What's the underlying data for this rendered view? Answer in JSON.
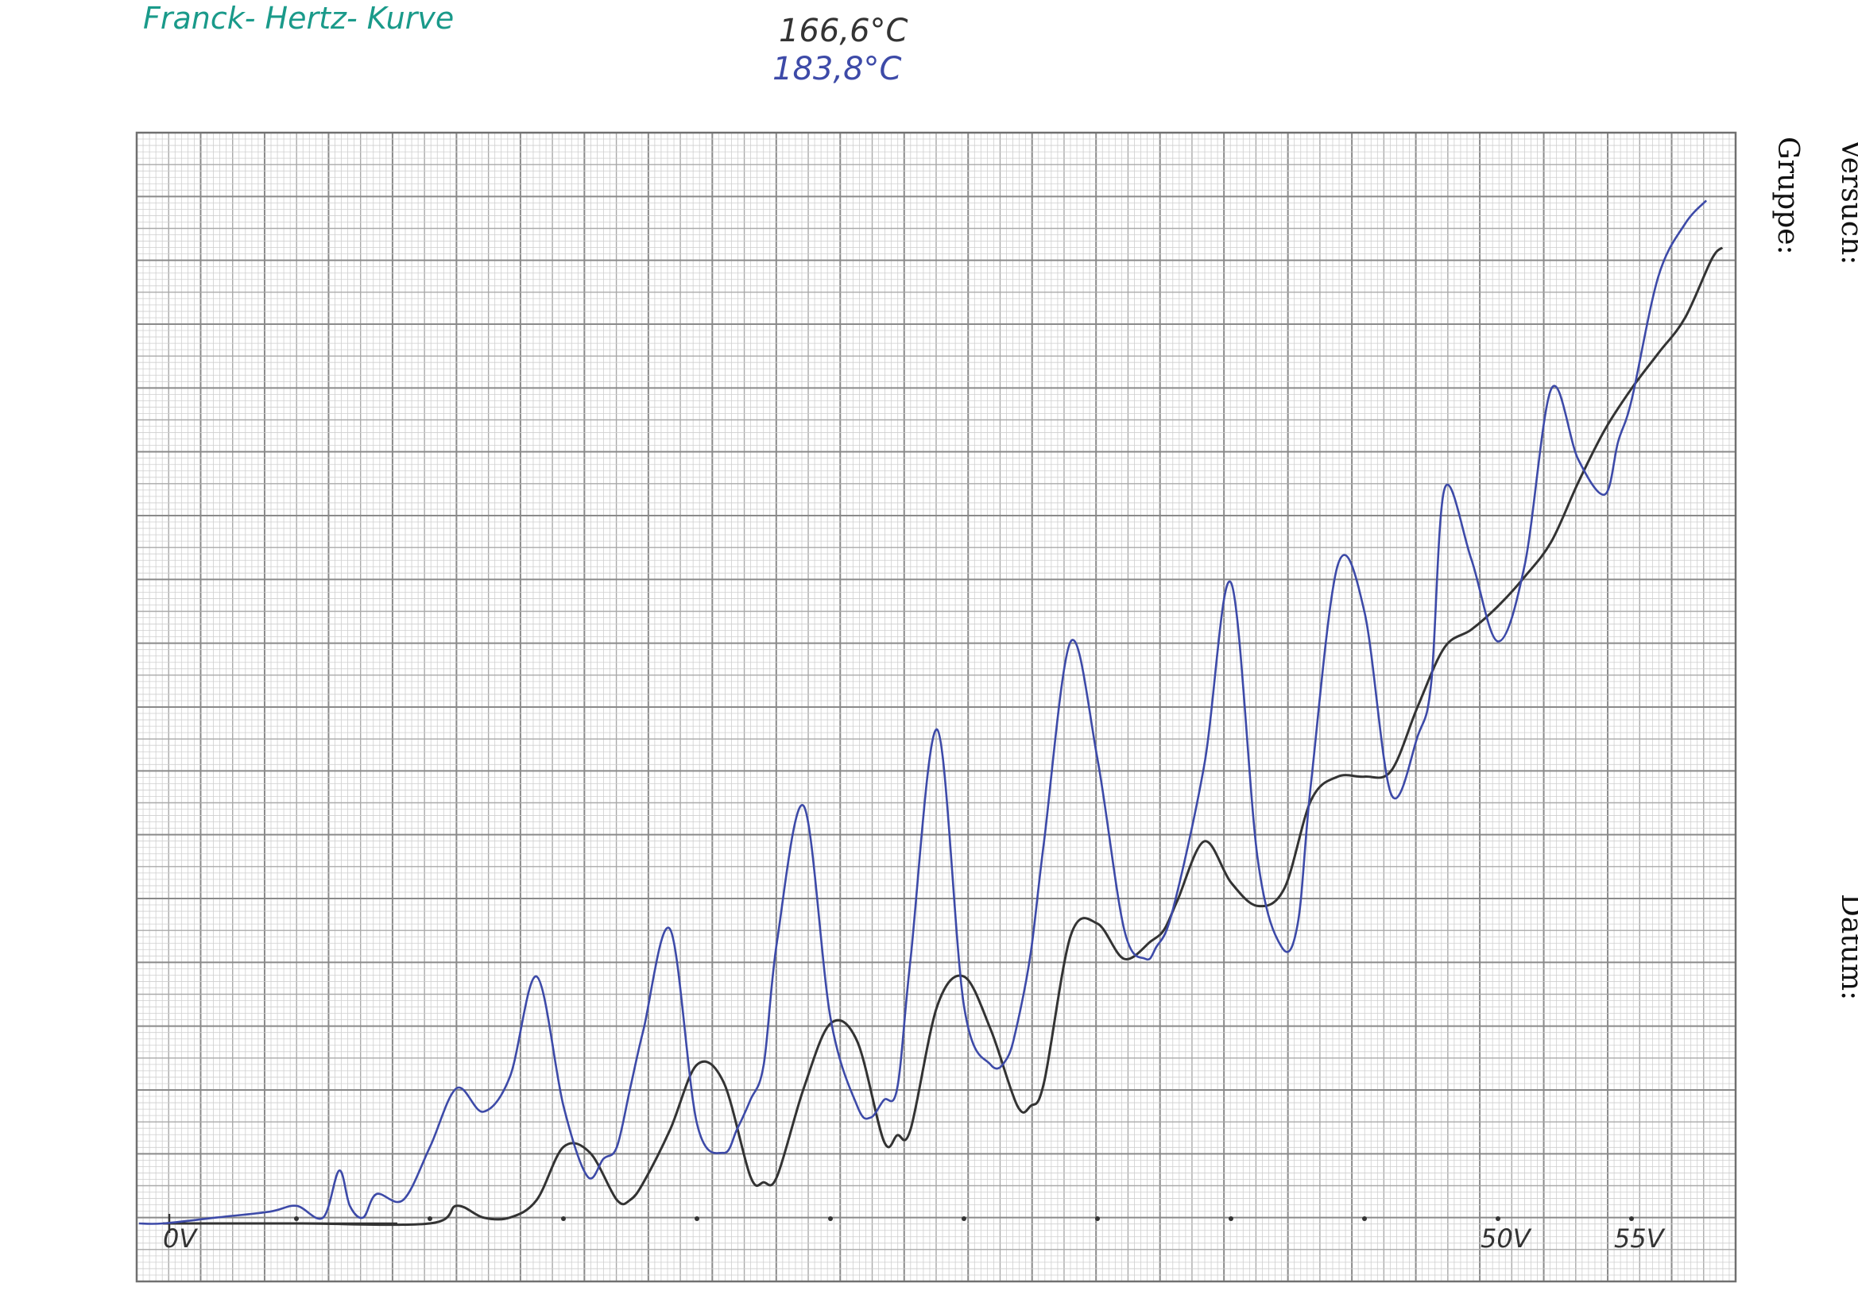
{
  "header": {
    "title": "Franck- Hertz- Kurve",
    "temp_1": "166,6°C",
    "temp_2": "183,8°C"
  },
  "margin": {
    "label_1": "Versuch:",
    "label_2": "Gruppe:",
    "label_3": "Datum:"
  },
  "colors": {
    "title": "#1a9a8a",
    "curve_1": "#333333",
    "curve_2": "#3d4aa8",
    "grid_major": "#8a8a8a",
    "grid_minor": "#cfcfcf"
  },
  "chart_data": {
    "type": "line",
    "title": "Franck- Hertz- Kurve",
    "xlabel": "",
    "ylabel": "",
    "x_unit": "V",
    "xlim": [
      -1,
      60
    ],
    "ylim": [
      -1,
      17.5
    ],
    "grid": true,
    "tick_labels": [
      "0V",
      "50V",
      "55V"
    ],
    "tick_values": [
      0,
      50,
      55
    ],
    "series": [
      {
        "name": "166,6°C",
        "color": "#333333",
        "x": [
          0,
          5,
          10,
          11,
          12,
          13,
          14,
          15,
          16,
          17,
          17.5,
          18,
          19,
          20,
          21,
          22,
          22.5,
          23,
          24,
          25,
          26,
          27,
          27.5,
          28,
          29,
          30,
          31,
          32,
          32.5,
          33,
          34,
          35,
          36,
          37,
          37.5,
          38,
          39,
          40,
          41,
          42,
          43,
          44,
          45,
          46,
          47,
          48,
          49,
          50,
          51,
          52,
          53,
          54,
          55,
          56,
          57,
          58,
          58.4
        ],
        "y": [
          0,
          0,
          0,
          0.3,
          0.1,
          0.1,
          0.4,
          1.3,
          1.2,
          0.4,
          0.4,
          0.7,
          1.6,
          2.7,
          2.4,
          0.8,
          0.7,
          0.8,
          2.3,
          3.4,
          3.1,
          1.4,
          1.5,
          1.6,
          3.7,
          4.2,
          3.3,
          2.0,
          2.0,
          2.4,
          4.9,
          5.1,
          4.5,
          4.8,
          5.0,
          5.5,
          6.5,
          5.8,
          5.4,
          5.7,
          7.2,
          7.6,
          7.6,
          7.7,
          8.8,
          9.8,
          10.1,
          10.5,
          11.0,
          11.6,
          12.6,
          13.5,
          14.2,
          14.8,
          15.4,
          16.4,
          16.6
        ]
      },
      {
        "name": "183,8°C",
        "color": "#3d4aa8",
        "x": [
          -0.9,
          0,
          2,
          4,
          5,
          6,
          6.6,
          7,
          7.5,
          8,
          9,
          10,
          11,
          12,
          13,
          14,
          15,
          15.9,
          16.5,
          17,
          17.5,
          18,
          19,
          20,
          21,
          21.5,
          22,
          22.5,
          23,
          24,
          25,
          26,
          26.5,
          27,
          27.5,
          28,
          29,
          30,
          31,
          31.6,
          32,
          32.5,
          33,
          34,
          35,
          36,
          36.8,
          37.2,
          37.8,
          39,
          40,
          41,
          41.9,
          42.5,
          43,
          44,
          45,
          46,
          47,
          47.5,
          48,
          49,
          50,
          51,
          52,
          53,
          54,
          54.5,
          55,
          56,
          57,
          57.8
        ],
        "y": [
          0,
          0,
          0.1,
          0.2,
          0.3,
          0.1,
          0.9,
          0.3,
          0.1,
          0.5,
          0.4,
          1.3,
          2.3,
          1.9,
          2.5,
          4.2,
          2.0,
          0.8,
          1.1,
          1.3,
          2.3,
          3.3,
          5.0,
          1.7,
          1.2,
          1.6,
          2.1,
          2.7,
          4.8,
          7.1,
          3.5,
          2.0,
          1.8,
          2.1,
          2.3,
          4.5,
          8.4,
          3.7,
          2.7,
          2.8,
          3.4,
          4.6,
          6.5,
          9.9,
          7.9,
          5.0,
          4.5,
          4.7,
          5.3,
          7.8,
          10.9,
          6.2,
          4.7,
          5.1,
          7.5,
          11.2,
          10.4,
          7.3,
          8.3,
          9.2,
          12.5,
          11.3,
          9.9,
          11.2,
          14.2,
          13.0,
          12.4,
          13.3,
          14.0,
          16.1,
          17.0,
          17.4
        ]
      }
    ]
  }
}
